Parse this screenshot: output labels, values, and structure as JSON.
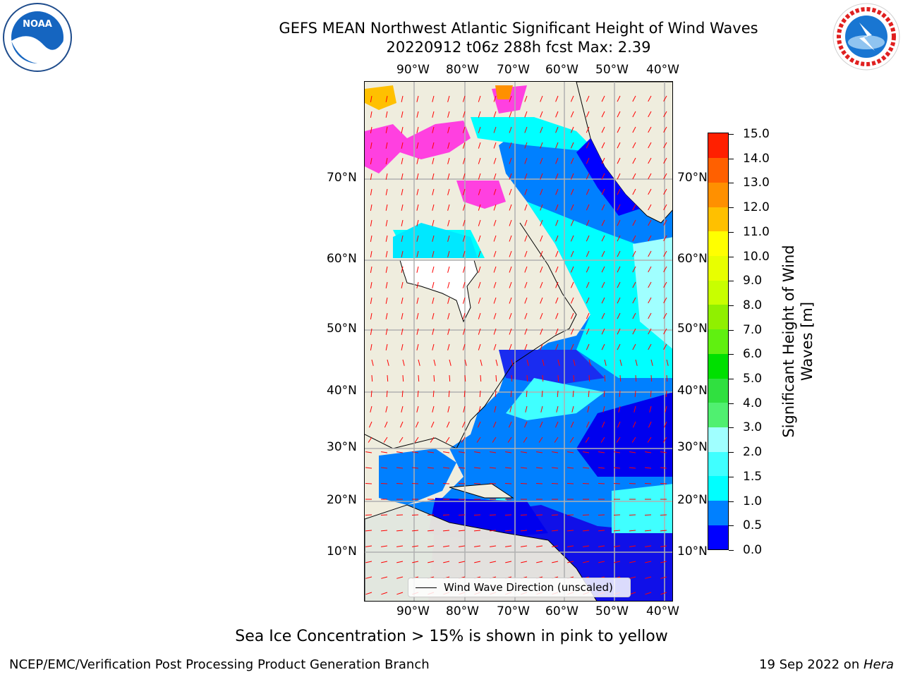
{
  "title": {
    "line1": "GEFS MEAN Northwest Atlantic Significant Height of Wind Waves",
    "line2": "20220912 t06z 288h fcst   Max: 2.39"
  },
  "logos": {
    "left": "noaa-logo",
    "left_text": "NOAA",
    "right": "nws-logo",
    "right_text": "NATIONAL WEATHER SERVICE"
  },
  "map": {
    "lon_labels": [
      "90°W",
      "80°W",
      "70°W",
      "60°W",
      "50°W",
      "40°W"
    ],
    "lat_labels": [
      "70°N",
      "60°N",
      "50°N",
      "40°N",
      "30°N",
      "20°N",
      "10°N"
    ],
    "legend": "Wind Wave Direction (unscaled)"
  },
  "colorbar": {
    "label": "Significant Height of Wind Waves [m]",
    "ticks": [
      "15.0",
      "14.0",
      "13.0",
      "12.0",
      "11.0",
      "10.0",
      "9.0",
      "8.0",
      "7.0",
      "6.0",
      "5.0",
      "4.0",
      "3.0",
      "2.0",
      "1.5",
      "1.0",
      "0.5",
      "0.0"
    ],
    "colors": [
      "#0000ff",
      "#0080ff",
      "#00ffff",
      "#40ffff",
      "#a0ffff",
      "#50f070",
      "#30e040",
      "#00e000",
      "#60f010",
      "#90f000",
      "#c8ff00",
      "#e8ff00",
      "#ffff00",
      "#ffc000",
      "#ff9000",
      "#ff6000",
      "#ff2000"
    ]
  },
  "note": "Sea Ice Concentration > 15% is shown in pink to yellow",
  "footer": {
    "left": "NCEP/EMC/Verification Post Processing Product Generation Branch",
    "right_date": "19 Sep 2022 on ",
    "right_host": "Hera"
  }
}
